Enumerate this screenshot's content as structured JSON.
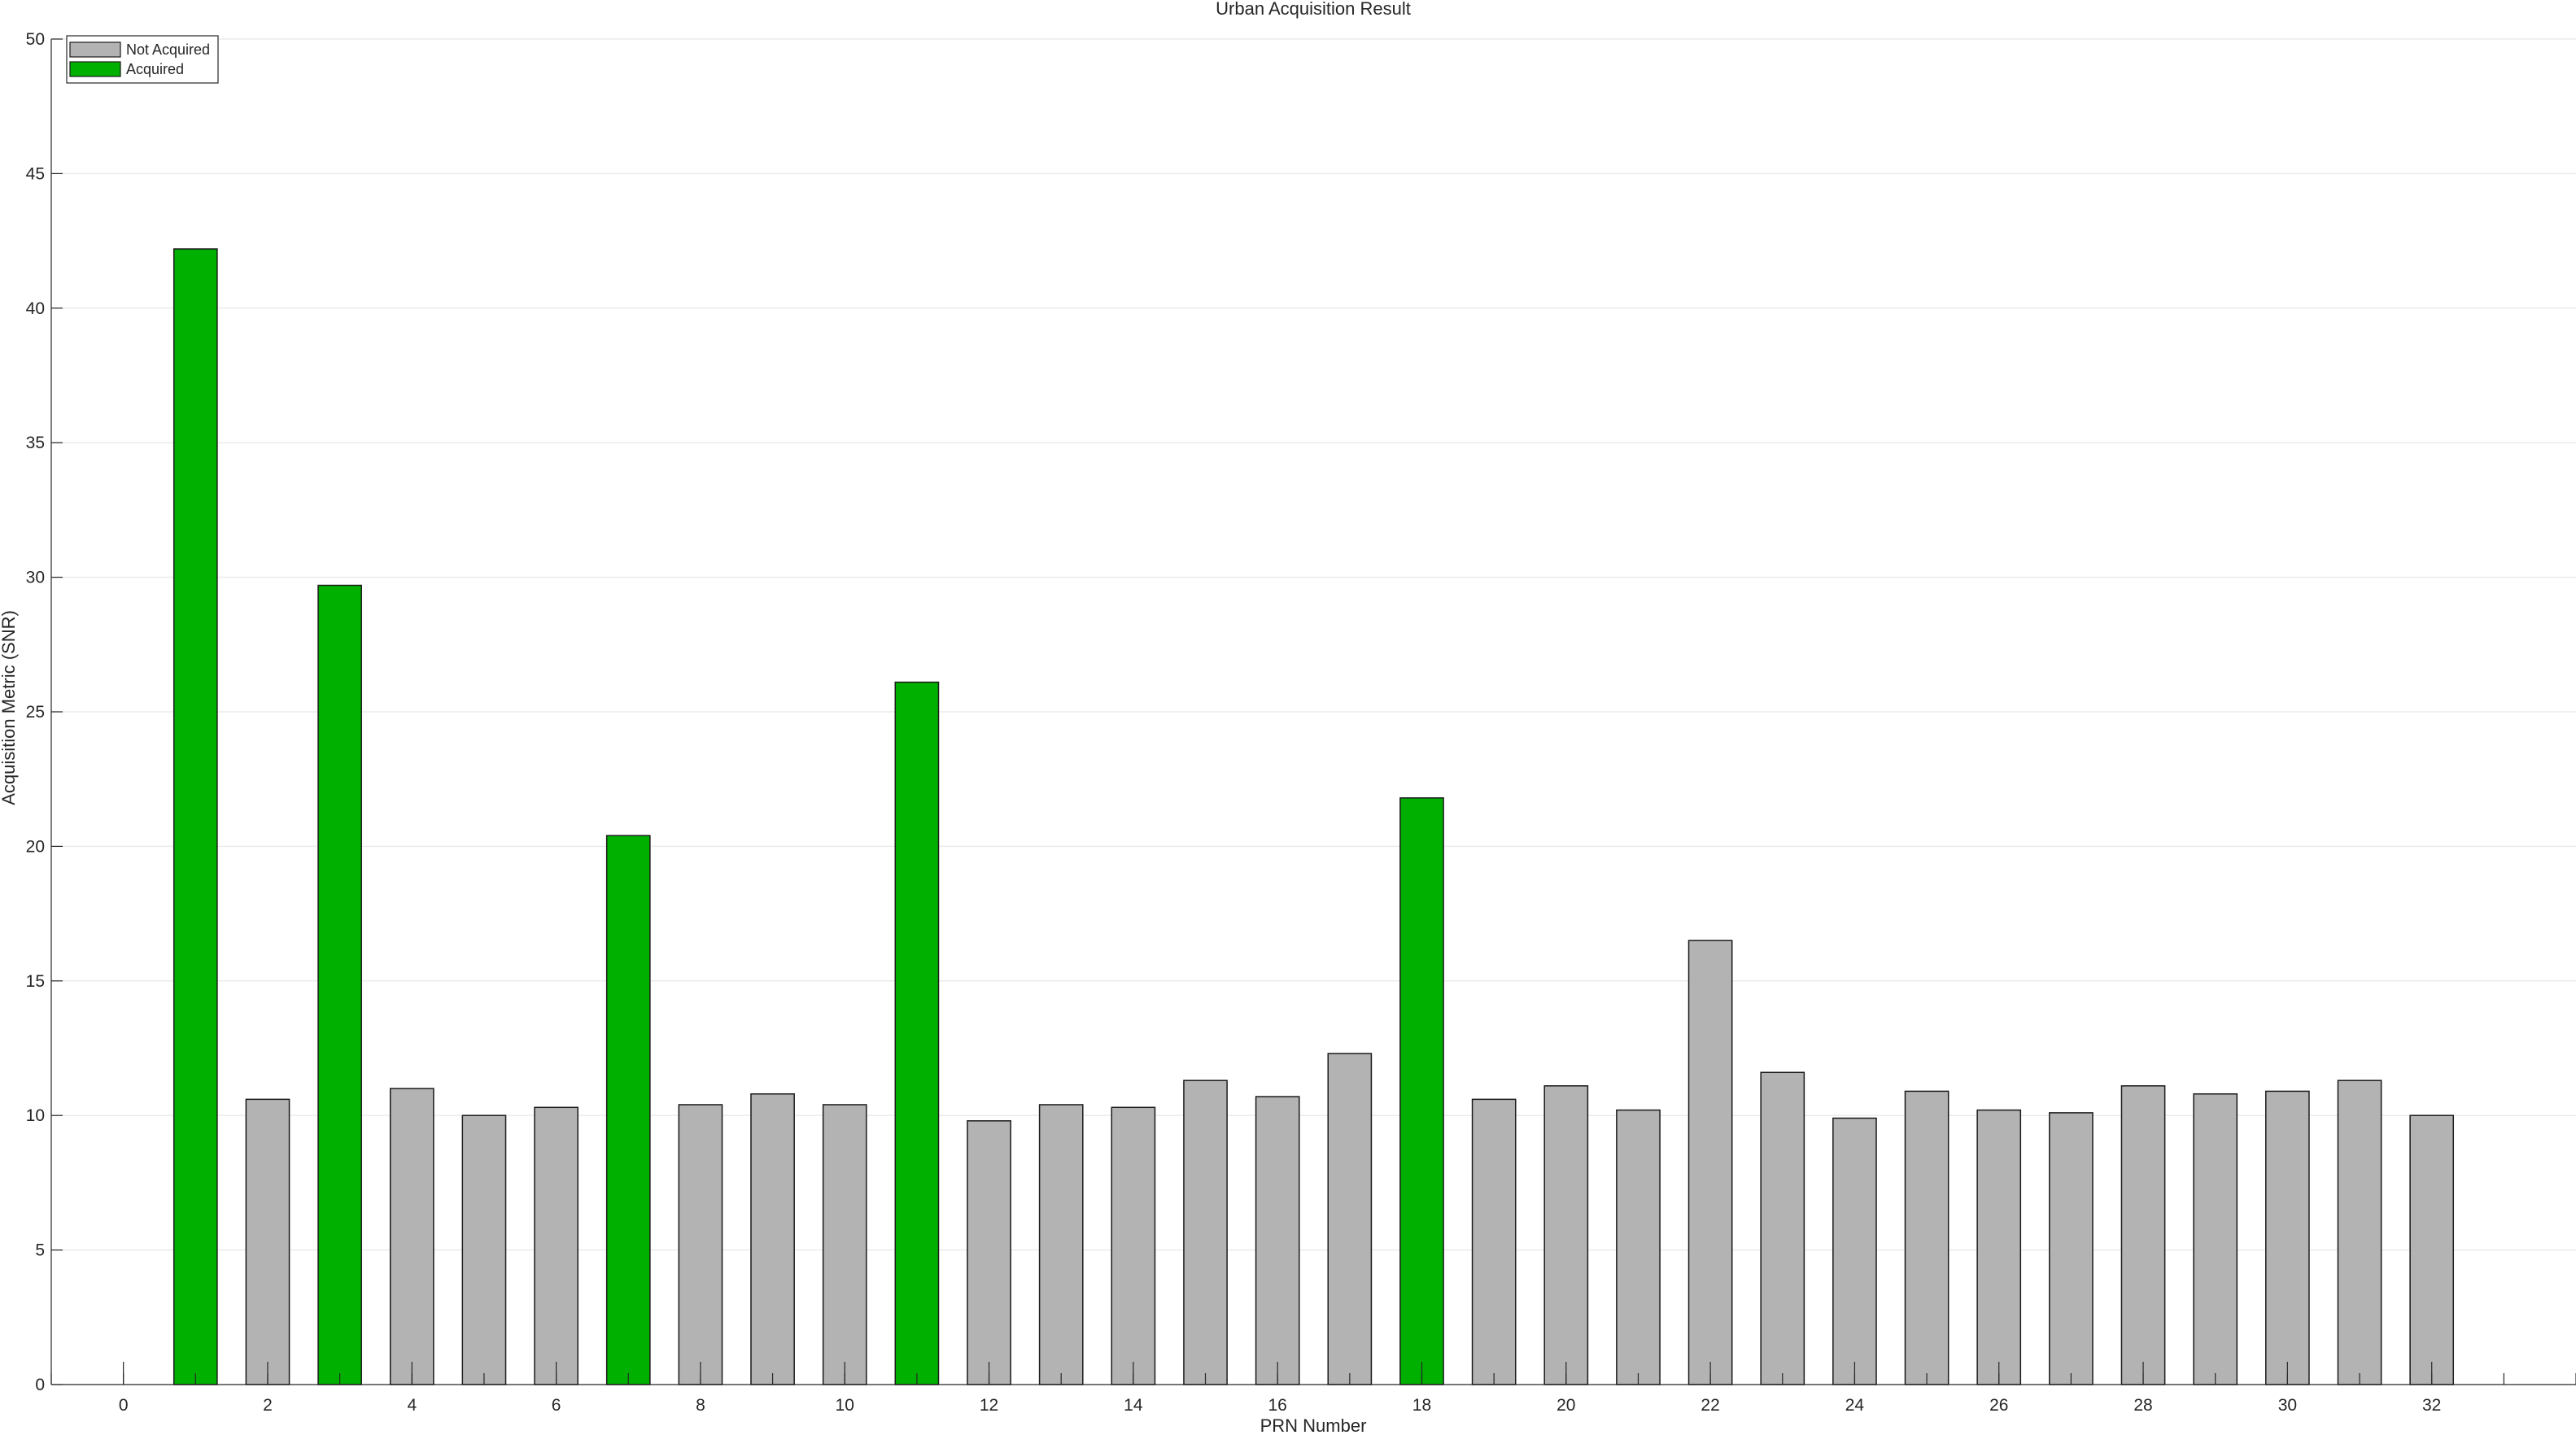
{
  "chart_data": {
    "type": "bar",
    "title": "Urban Acquisition Result",
    "xlabel": "PRN Number",
    "ylabel": "Acquisition Metric (SNR)",
    "xlim": [
      -1,
      34
    ],
    "ylim": [
      0,
      50
    ],
    "x_ticks": [
      0,
      2,
      4,
      6,
      8,
      10,
      12,
      14,
      16,
      18,
      20,
      22,
      24,
      26,
      28,
      30,
      32
    ],
    "y_ticks": [
      0,
      5,
      10,
      15,
      20,
      25,
      30,
      35,
      40,
      45,
      50
    ],
    "grid": "horizontal",
    "legend_position": "top-left",
    "colors": {
      "not_acquired": "#b3b3b3",
      "acquired": "#00b000"
    },
    "series": [
      {
        "name": "Not Acquired",
        "x": [
          2,
          4,
          5,
          6,
          8,
          9,
          10,
          12,
          13,
          14,
          15,
          16,
          17,
          19,
          20,
          21,
          22,
          23,
          24,
          25,
          26,
          27,
          28,
          29,
          30,
          31,
          32
        ],
        "values": [
          10.6,
          11.0,
          10.0,
          10.3,
          10.4,
          10.8,
          10.4,
          9.8,
          10.4,
          10.3,
          11.3,
          10.7,
          12.3,
          10.6,
          11.1,
          10.2,
          16.5,
          11.6,
          9.9,
          10.9,
          10.2,
          10.1,
          11.1,
          10.8,
          10.9,
          11.3,
          10.0
        ]
      },
      {
        "name": "Acquired",
        "x": [
          1,
          3,
          7,
          11,
          18
        ],
        "values": [
          42.2,
          29.7,
          20.4,
          26.1,
          21.8
        ]
      }
    ]
  }
}
